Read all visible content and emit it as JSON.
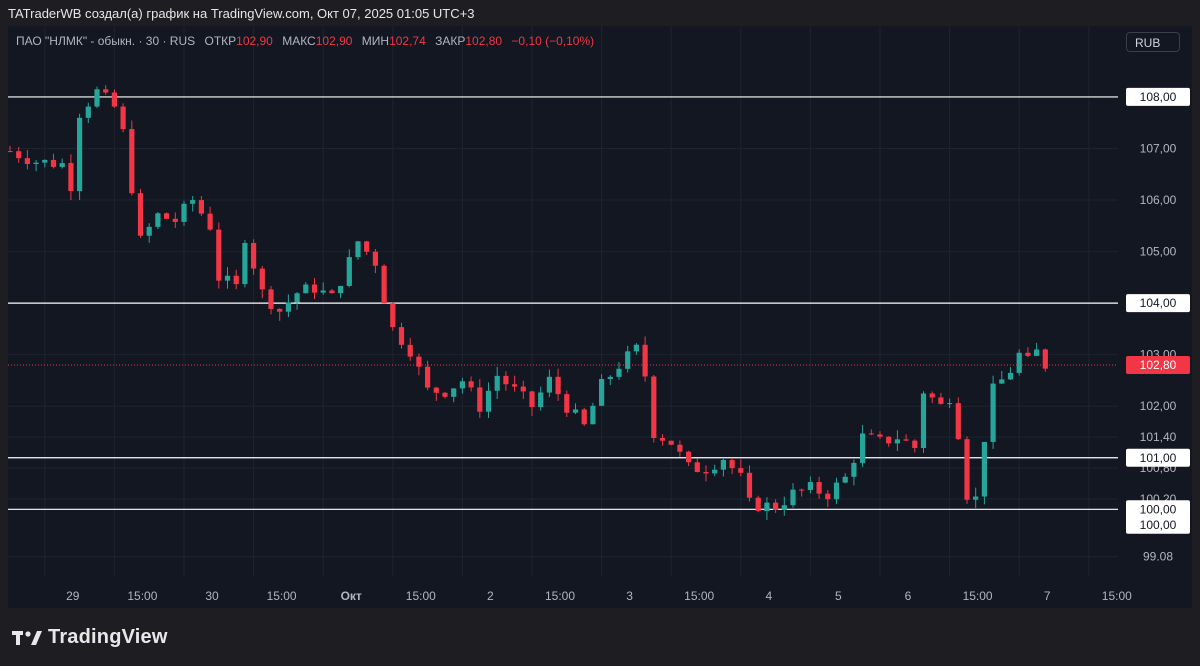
{
  "header": {
    "text": "TATraderWB создал(а) график на TradingView.com, Окт 07, 2025 01:05 UTC+3"
  },
  "symbol": {
    "name": "ПАО \"НЛМК\" - обыкн. · 30 · RUS",
    "open_label": "ОТКР",
    "open": "102,90",
    "high_label": "МАКС",
    "high": "102,90",
    "low_label": "МИН",
    "low": "102,74",
    "close_label": "ЗАКР",
    "close": "102,80",
    "change": "−0,10 (−0,10%)"
  },
  "currency": "RUB",
  "footer": {
    "brand": "TradingView"
  },
  "colors": {
    "background": "#131722",
    "up": "#26a69a",
    "down": "#f23645",
    "level_line": "#ffffff",
    "current_price": "#f23645"
  },
  "chart_data": {
    "type": "candlestick",
    "interval": "30",
    "y_axis": {
      "range": [
        98.9,
        108.6
      ],
      "tick_labels": [
        {
          "value": 107,
          "label": "107,00"
        },
        {
          "value": 106,
          "label": "106,00"
        },
        {
          "value": 105,
          "label": "105,00"
        },
        {
          "value": 103,
          "label": "103,00"
        },
        {
          "value": 102,
          "label": "102,00"
        },
        {
          "value": 101.4,
          "label": "101,40"
        },
        {
          "value": 100.8,
          "label": "100,80"
        },
        {
          "value": 100.2,
          "label": "100,20"
        },
        {
          "value": 99.08,
          "label": "99.08"
        }
      ]
    },
    "x_axis": {
      "tick_labels": [
        {
          "bar": 4,
          "label": "29"
        },
        {
          "bar": 12,
          "label": "15:00"
        },
        {
          "bar": 20,
          "label": "30"
        },
        {
          "bar": 28,
          "label": "15:00"
        },
        {
          "bar": 36,
          "label": "Окт"
        },
        {
          "bar": 44,
          "label": "15:00"
        },
        {
          "bar": 52,
          "label": "2"
        },
        {
          "bar": 60,
          "label": "15:00"
        },
        {
          "bar": 68,
          "label": "3"
        },
        {
          "bar": 76,
          "label": "15:00"
        },
        {
          "bar": 84,
          "label": "4"
        },
        {
          "bar": 92,
          "label": "5"
        },
        {
          "bar": 100,
          "label": "6"
        },
        {
          "bar": 108,
          "label": "15:00"
        },
        {
          "bar": 116,
          "label": "7"
        },
        {
          "bar": 124,
          "label": "15:00"
        }
      ]
    },
    "horizontal_levels": [
      {
        "value": 108.0,
        "label": "108,00"
      },
      {
        "value": 104.0,
        "label": "104,00"
      },
      {
        "value": 101.0,
        "label": "101,00"
      },
      {
        "value": 100.0,
        "label": "100,00"
      }
    ],
    "price_labels": [
      {
        "value": 99.7,
        "label": "100,00"
      }
    ],
    "current_price": {
      "value": 102.8,
      "label": "102,80"
    },
    "close_path": [
      {
        "bar": 0,
        "close": 106.95
      },
      {
        "bar": 3,
        "close": 106.75
      },
      {
        "bar": 6,
        "close": 106.7
      },
      {
        "bar": 7,
        "close": 106.3
      },
      {
        "bar": 8,
        "close": 107.7
      },
      {
        "bar": 10,
        "close": 108.1
      },
      {
        "bar": 12,
        "close": 107.8
      },
      {
        "bar": 13,
        "close": 107.3
      },
      {
        "bar": 15,
        "close": 105.2
      },
      {
        "bar": 17,
        "close": 105.7
      },
      {
        "bar": 19,
        "close": 105.6
      },
      {
        "bar": 21,
        "close": 106.0
      },
      {
        "bar": 23,
        "close": 105.5
      },
      {
        "bar": 24,
        "close": 104.5
      },
      {
        "bar": 26,
        "close": 104.3
      },
      {
        "bar": 27,
        "close": 105.3
      },
      {
        "bar": 29,
        "close": 104.2
      },
      {
        "bar": 31,
        "close": 103.85
      },
      {
        "bar": 33,
        "close": 104.2
      },
      {
        "bar": 35,
        "close": 104.3
      },
      {
        "bar": 37,
        "close": 104.1
      },
      {
        "bar": 39,
        "close": 104.8
      },
      {
        "bar": 40,
        "close": 105.2
      },
      {
        "bar": 42,
        "close": 104.8
      },
      {
        "bar": 43,
        "close": 104.1
      },
      {
        "bar": 44,
        "close": 103.5
      },
      {
        "bar": 46,
        "close": 103.1
      },
      {
        "bar": 48,
        "close": 102.3
      },
      {
        "bar": 50,
        "close": 102.3
      },
      {
        "bar": 52,
        "close": 102.5
      },
      {
        "bar": 54,
        "close": 102.0
      },
      {
        "bar": 56,
        "close": 102.6
      },
      {
        "bar": 58,
        "close": 102.3
      },
      {
        "bar": 60,
        "close": 102.0
      },
      {
        "bar": 62,
        "close": 102.5
      },
      {
        "bar": 64,
        "close": 102.0
      },
      {
        "bar": 66,
        "close": 101.6
      },
      {
        "bar": 68,
        "close": 102.4
      },
      {
        "bar": 70,
        "close": 102.8
      },
      {
        "bar": 72,
        "close": 103.1
      },
      {
        "bar": 73,
        "close": 102.6
      },
      {
        "bar": 74,
        "close": 101.5
      },
      {
        "bar": 76,
        "close": 101.3
      },
      {
        "bar": 78,
        "close": 100.8
      },
      {
        "bar": 80,
        "close": 100.8
      },
      {
        "bar": 82,
        "close": 101.0
      },
      {
        "bar": 84,
        "close": 100.6
      },
      {
        "bar": 85,
        "close": 100.1
      },
      {
        "bar": 88,
        "close": 100.05
      },
      {
        "bar": 90,
        "close": 100.3
      },
      {
        "bar": 92,
        "close": 100.4
      },
      {
        "bar": 94,
        "close": 100.3
      },
      {
        "bar": 96,
        "close": 100.6
      },
      {
        "bar": 98,
        "close": 101.4
      },
      {
        "bar": 100,
        "close": 101.3
      },
      {
        "bar": 102,
        "close": 101.4
      },
      {
        "bar": 104,
        "close": 101.2
      },
      {
        "bar": 105,
        "close": 102.3
      },
      {
        "bar": 107,
        "close": 102.0
      },
      {
        "bar": 108,
        "close": 102.2
      },
      {
        "bar": 109,
        "close": 101.5
      },
      {
        "bar": 110,
        "close": 100.3
      },
      {
        "bar": 111,
        "close": 100.2
      },
      {
        "bar": 112,
        "close": 101.4
      },
      {
        "bar": 113,
        "close": 102.3
      },
      {
        "bar": 115,
        "close": 102.7
      },
      {
        "bar": 116,
        "close": 103.0
      },
      {
        "bar": 117,
        "close": 102.85
      },
      {
        "bar": 118,
        "close": 103.05
      },
      {
        "bar": 119,
        "close": 102.8
      }
    ]
  }
}
